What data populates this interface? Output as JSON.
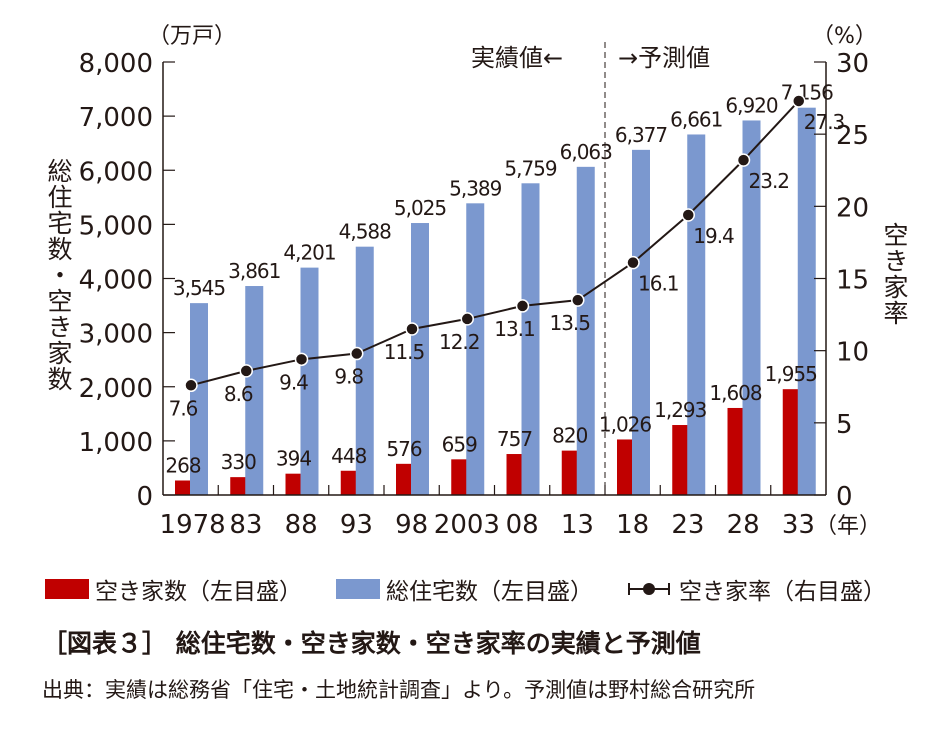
{
  "chart_data": {
    "type": "bar+line",
    "categories": [
      "1978",
      "83",
      "88",
      "93",
      "98",
      "2003",
      "08",
      "13",
      "18",
      "23",
      "28",
      "33"
    ],
    "x_unit": "（年）",
    "series": [
      {
        "name": "空き家数（左目盛）",
        "type": "bar",
        "axis": "left",
        "color": "#c00000",
        "values": [
          268,
          330,
          394,
          448,
          576,
          659,
          757,
          820,
          1026,
          1293,
          1608,
          1955
        ],
        "labels": [
          "268",
          "330",
          "394",
          "448",
          "576",
          "659",
          "757",
          "820",
          "1,026",
          "1,293",
          "1,608",
          "1,955"
        ]
      },
      {
        "name": "総住宅数（左目盛）",
        "type": "bar",
        "axis": "left",
        "color": "#7b98cf",
        "values": [
          3545,
          3861,
          4201,
          4588,
          5025,
          5389,
          5759,
          6063,
          6377,
          6661,
          6920,
          7156
        ],
        "labels": [
          "3,545",
          "3,861",
          "4,201",
          "4,588",
          "5,025",
          "5,389",
          "5,759",
          "6,063",
          "6,377",
          "6,661",
          "6,920",
          "7,156"
        ]
      },
      {
        "name": "空き家率（右目盛）",
        "type": "line",
        "axis": "right",
        "color": "#231815",
        "values": [
          7.6,
          8.6,
          9.4,
          9.8,
          11.5,
          12.2,
          13.1,
          13.5,
          16.1,
          19.4,
          23.2,
          27.3
        ],
        "labels": [
          "7.6",
          "8.6",
          "9.4",
          "9.8",
          "11.5",
          "12.2",
          "13.1",
          "13.5",
          "16.1",
          "19.4",
          "23.2",
          "27.3"
        ]
      }
    ],
    "y_left": {
      "label": "総住宅数・空き家数",
      "unit": "（万戸）",
      "range": [
        0,
        8000
      ],
      "ticks": [
        "0",
        "1,000",
        "2,000",
        "3,000",
        "4,000",
        "5,000",
        "6,000",
        "7,000",
        "8,000"
      ]
    },
    "y_right": {
      "label": "空き家率",
      "unit": "（%）",
      "range": [
        0,
        30
      ],
      "ticks": [
        "0",
        "5",
        "10",
        "15",
        "20",
        "25",
        "30"
      ]
    },
    "divider": {
      "after_category": "13",
      "left_label": "実績値←",
      "right_label": "→予測値"
    },
    "legend_placement": "bottom",
    "grid": false
  },
  "caption": "［図表３］ 総住宅数・空き家数・空き家率の実績と予測値",
  "source": "出典：実績は総務省「住宅・土地統計調査」より。予測値は野村総合研究所"
}
